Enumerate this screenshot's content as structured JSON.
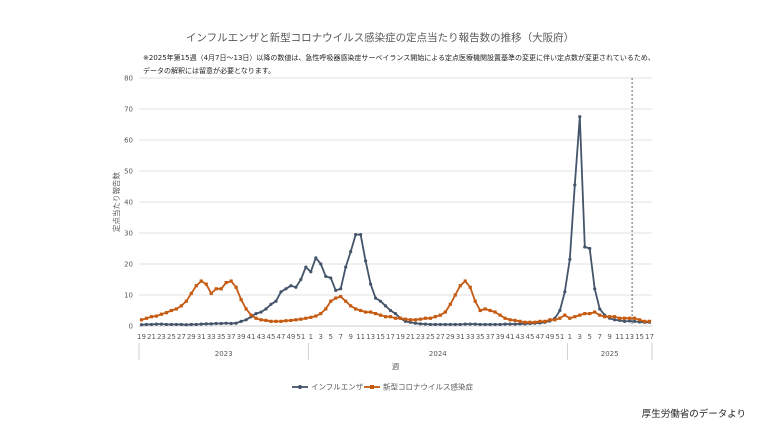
{
  "title": "インフルエンザと新型コロナウイルス感染症の定点当たり報告数の推移（大阪府）",
  "notes": [
    "※2025年第15週（4月7日～13日）以降の数値は、急性呼吸器感染症サーベイランス開始による定点医療機関設置基準の変更に伴い定点数が変更されているため、",
    "データの解釈には留意が必要となります。"
  ],
  "source": "厚生労働省のデータより",
  "colors": {
    "influenza": "#44546A",
    "covid": "#C55A11",
    "grid": "#D9D9D9"
  },
  "chart_data": {
    "type": "line",
    "title": "インフルエンザと新型コロナウイルス感染症の定点当たり報告数の推移（大阪府）",
    "xlabel": "週",
    "ylabel": "定点当たり報告数",
    "ylim": [
      0,
      80
    ],
    "yticks": [
      0,
      10,
      20,
      30,
      40,
      50,
      60,
      70,
      80
    ],
    "grid": true,
    "legend_position": "bottom",
    "tick_labels": [
      "19",
      "21",
      "23",
      "25",
      "27",
      "29",
      "31",
      "33",
      "35",
      "37",
      "39",
      "41",
      "43",
      "45",
      "47",
      "49",
      "51",
      "1",
      "3",
      "5",
      "7",
      "9",
      "11",
      "13",
      "15",
      "17",
      "19",
      "21",
      "23",
      "25",
      "27",
      "29",
      "31",
      "33",
      "35",
      "37",
      "39",
      "41",
      "43",
      "45",
      "47",
      "49",
      "51",
      "1",
      "3",
      "5",
      "7",
      "9",
      "11",
      "13",
      "15",
      "17"
    ],
    "years": [
      {
        "label": "2023",
        "start": 0,
        "end": 33
      },
      {
        "label": "2024",
        "start": 34,
        "end": 85
      },
      {
        "label": "2025",
        "start": 86,
        "end": 102
      }
    ],
    "divider_after_week_index": 98,
    "series": [
      {
        "name": "インフルエンザ",
        "values": [
          0.4,
          0.5,
          0.5,
          0.6,
          0.6,
          0.5,
          0.5,
          0.5,
          0.5,
          0.4,
          0.5,
          0.5,
          0.6,
          0.7,
          0.7,
          0.8,
          0.8,
          0.9,
          0.8,
          0.9,
          1.5,
          2,
          3,
          4,
          4.5,
          5.5,
          7,
          8,
          11,
          12,
          13,
          12.5,
          15,
          19,
          17.5,
          22,
          20,
          16,
          15.5,
          11.5,
          12,
          19,
          24,
          29.5,
          29.5,
          21,
          13.5,
          9,
          8,
          6.5,
          5,
          4,
          2.5,
          1.5,
          1.2,
          0.9,
          0.7,
          0.6,
          0.5,
          0.5,
          0.5,
          0.5,
          0.5,
          0.5,
          0.5,
          0.6,
          0.6,
          0.6,
          0.5,
          0.5,
          0.5,
          0.5,
          0.5,
          0.6,
          0.6,
          0.6,
          0.7,
          0.7,
          0.8,
          0.9,
          1,
          1.2,
          1.6,
          2.5,
          5,
          11,
          21.5,
          45.5,
          67.5,
          25.5,
          25,
          12,
          5.5,
          3.5,
          2.5,
          2,
          1.8,
          1.5,
          1.6,
          1.5,
          1.3,
          1.2,
          1.2
        ]
      },
      {
        "name": "新型コロナウイルス感染症",
        "values": [
          2,
          2.5,
          3,
          3.2,
          3.8,
          4.3,
          5,
          5.5,
          6.5,
          8,
          10.5,
          13,
          14.5,
          13.5,
          10.5,
          12,
          12,
          14,
          14.5,
          12.5,
          8.5,
          5.5,
          3.5,
          2.5,
          2,
          1.8,
          1.5,
          1.5,
          1.5,
          1.7,
          1.8,
          2,
          2.2,
          2.5,
          2.8,
          3.2,
          4,
          5.5,
          8,
          9,
          9.5,
          8,
          6.5,
          5.5,
          5,
          4.5,
          4.5,
          4,
          3.5,
          3,
          3,
          2.5,
          2.5,
          2.2,
          2,
          2,
          2.2,
          2.5,
          2.5,
          3,
          3.5,
          4.5,
          7,
          10,
          13,
          14.5,
          12.5,
          8,
          5,
          5.5,
          5,
          4.5,
          3.5,
          2.5,
          2,
          1.8,
          1.5,
          1.2,
          1.2,
          1.2,
          1.5,
          1.5,
          2,
          2,
          2.5,
          3.5,
          2.5,
          3,
          3.5,
          4,
          4,
          4.5,
          3.5,
          3,
          3,
          3,
          2.5,
          2.5,
          2.5,
          2.5,
          2,
          1.5,
          1.5
        ]
      }
    ]
  }
}
